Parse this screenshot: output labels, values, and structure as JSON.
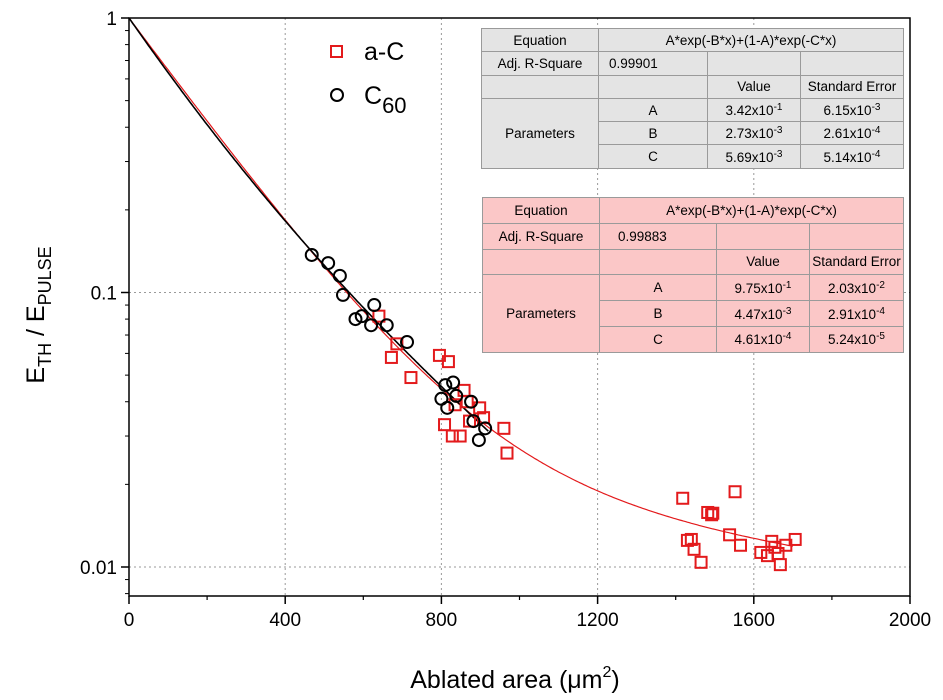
{
  "chart_data": {
    "type": "scatter",
    "xlabel_pre": "Ablated area (",
    "xlabel_unit": "μm",
    "xlabel_exp": "2",
    "xlabel_post": ")",
    "ylabel": {
      "main1": "E",
      "sub1": "TH",
      "mid": " / E",
      "sub2": "PULSE"
    },
    "xlim": [
      0,
      2000
    ],
    "ylim": [
      0.0075,
      1.0
    ],
    "yscale": "log",
    "grid": true,
    "x_ticks": [
      0,
      400,
      800,
      1200,
      1600,
      2000
    ],
    "x_tick_labels": [
      "0",
      "400",
      "800",
      "1200",
      "1600",
      "2000"
    ],
    "y_ticks": [
      1,
      0.1,
      0.01
    ],
    "y_tick_labels": [
      "1",
      "0.1",
      "0.01"
    ],
    "legend_position": "top-center",
    "series": [
      {
        "name": "a-C",
        "marker": "square",
        "color": "#e31a1c",
        "points": [
          [
            640,
            0.082
          ],
          [
            672,
            0.058
          ],
          [
            686,
            0.065
          ],
          [
            722,
            0.049
          ],
          [
            795,
            0.059
          ],
          [
            808,
            0.033
          ],
          [
            818,
            0.056
          ],
          [
            828,
            0.03
          ],
          [
            835,
            0.039
          ],
          [
            848,
            0.03
          ],
          [
            858,
            0.044
          ],
          [
            866,
            0.04
          ],
          [
            872,
            0.034
          ],
          [
            898,
            0.038
          ],
          [
            908,
            0.035
          ],
          [
            960,
            0.032
          ],
          [
            968,
            0.026
          ],
          [
            1418,
            0.0178
          ],
          [
            1430,
            0.0125
          ],
          [
            1440,
            0.0126
          ],
          [
            1447,
            0.0116
          ],
          [
            1465,
            0.0104
          ],
          [
            1482,
            0.0158
          ],
          [
            1492,
            0.0155
          ],
          [
            1495,
            0.0157
          ],
          [
            1538,
            0.0131
          ],
          [
            1552,
            0.0188
          ],
          [
            1566,
            0.012
          ],
          [
            1618,
            0.0113
          ],
          [
            1635,
            0.011
          ],
          [
            1646,
            0.0124
          ],
          [
            1654,
            0.0118
          ],
          [
            1662,
            0.0112
          ],
          [
            1668,
            0.0102
          ],
          [
            1682,
            0.012
          ],
          [
            1706,
            0.0126
          ]
        ]
      },
      {
        "name": "C60",
        "legend_main": "C",
        "legend_sub": "60",
        "marker": "circle",
        "color": "#000000",
        "points": [
          [
            468,
            0.137
          ],
          [
            510,
            0.128
          ],
          [
            540,
            0.115
          ],
          [
            548,
            0.098
          ],
          [
            580,
            0.08
          ],
          [
            596,
            0.082
          ],
          [
            620,
            0.076
          ],
          [
            628,
            0.09
          ],
          [
            660,
            0.076
          ],
          [
            712,
            0.066
          ],
          [
            800,
            0.041
          ],
          [
            810,
            0.046
          ],
          [
            815,
            0.038
          ],
          [
            830,
            0.047
          ],
          [
            838,
            0.042
          ],
          [
            876,
            0.04
          ],
          [
            882,
            0.034
          ],
          [
            896,
            0.029
          ],
          [
            912,
            0.032
          ]
        ]
      }
    ],
    "fits": [
      {
        "series": "a-C",
        "color": "#e31a1c",
        "A": 0.975,
        "B": 0.00447,
        "C": 0.000461,
        "x_range": [
          0,
          1700
        ]
      },
      {
        "series": "C60",
        "color": "#000000",
        "A": 0.342,
        "B": 0.00273,
        "C": 0.00569,
        "x_range": [
          0,
          920
        ]
      }
    ]
  },
  "tables": {
    "gray": {
      "equation_label": "Equation",
      "equation": "A*exp(-B*x)+(1-A)*exp(-C*x)",
      "r2_label": "Adj. R-Square",
      "r2_value": "0.99901",
      "value_header": "Value",
      "error_header": "Standard Error",
      "parameters_label": "Parameters",
      "rows": [
        {
          "name": "A",
          "value_base": "3.42x10",
          "value_exp": "-1",
          "err_base": "6.15x10",
          "err_exp": "-3"
        },
        {
          "name": "B",
          "value_base": "2.73x10",
          "value_exp": "-3",
          "err_base": "2.61x10",
          "err_exp": "-4"
        },
        {
          "name": "C",
          "value_base": "5.69x10",
          "value_exp": "-3",
          "err_base": "5.14x10",
          "err_exp": "-4"
        }
      ]
    },
    "red": {
      "equation_label": "Equation",
      "equation": "A*exp(-B*x)+(1-A)*exp(-C*x)",
      "r2_label": "Adj. R-Square",
      "r2_value": "0.99883",
      "value_header": "Value",
      "error_header": "Standard Error",
      "parameters_label": "Parameters",
      "rows": [
        {
          "name": "A",
          "value_base": "9.75x10",
          "value_exp": "-1",
          "err_base": "2.03x10",
          "err_exp": "-2"
        },
        {
          "name": "B",
          "value_base": "4.47x10",
          "value_exp": "-3",
          "err_base": "2.91x10",
          "err_exp": "-4"
        },
        {
          "name": "C",
          "value_base": "4.61x10",
          "value_exp": "-4",
          "err_base": "5.24x10",
          "err_exp": "-5"
        }
      ]
    }
  }
}
